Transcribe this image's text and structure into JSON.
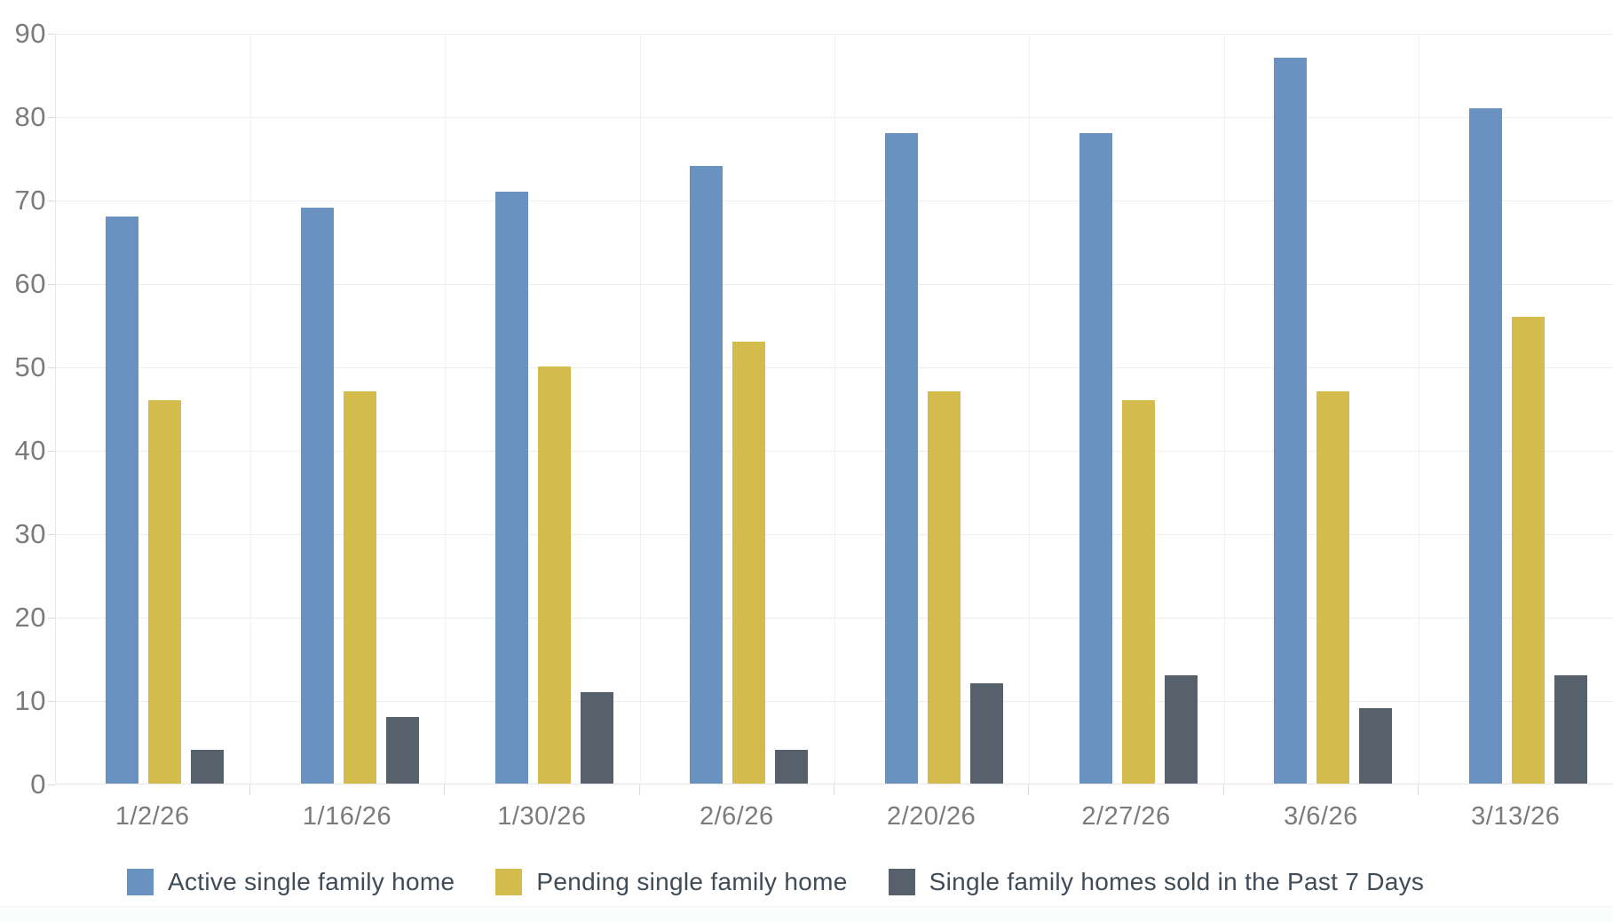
{
  "chart_data": {
    "type": "bar",
    "title": "",
    "categories": [
      "1/2/26",
      "1/16/26",
      "1/30/26",
      "2/6/26",
      "2/20/26",
      "2/27/26",
      "3/6/26",
      "3/13/26"
    ],
    "series": [
      {
        "name": "Active single family home",
        "color": "#6a92c0",
        "values": [
          68,
          69,
          71,
          74,
          78,
          78,
          87,
          81
        ]
      },
      {
        "name": "Pending single family home",
        "color": "#d3bc4b",
        "values": [
          46,
          47,
          50,
          53,
          47,
          46,
          47,
          56
        ]
      },
      {
        "name": "Single family homes sold in the Past 7 Days",
        "color": "#57616b",
        "values": [
          4,
          8,
          11,
          4,
          12,
          13,
          9,
          13
        ]
      }
    ],
    "xlabel": "",
    "ylabel": "",
    "ylim": [
      0,
      90
    ],
    "yticks": [
      0,
      10,
      20,
      30,
      40,
      50,
      60,
      70,
      80,
      90
    ],
    "grid": true,
    "legend_position": "bottom"
  },
  "colors": {
    "background": "#ffffff",
    "gridline": "#ededed",
    "axis_line": "#e7e7e7",
    "axis_label": "#7b7b7b",
    "legend_text": "#3f4b56",
    "series_blue": "#6a92c0",
    "series_yellow": "#d3bc4b",
    "series_gray": "#57616b"
  }
}
